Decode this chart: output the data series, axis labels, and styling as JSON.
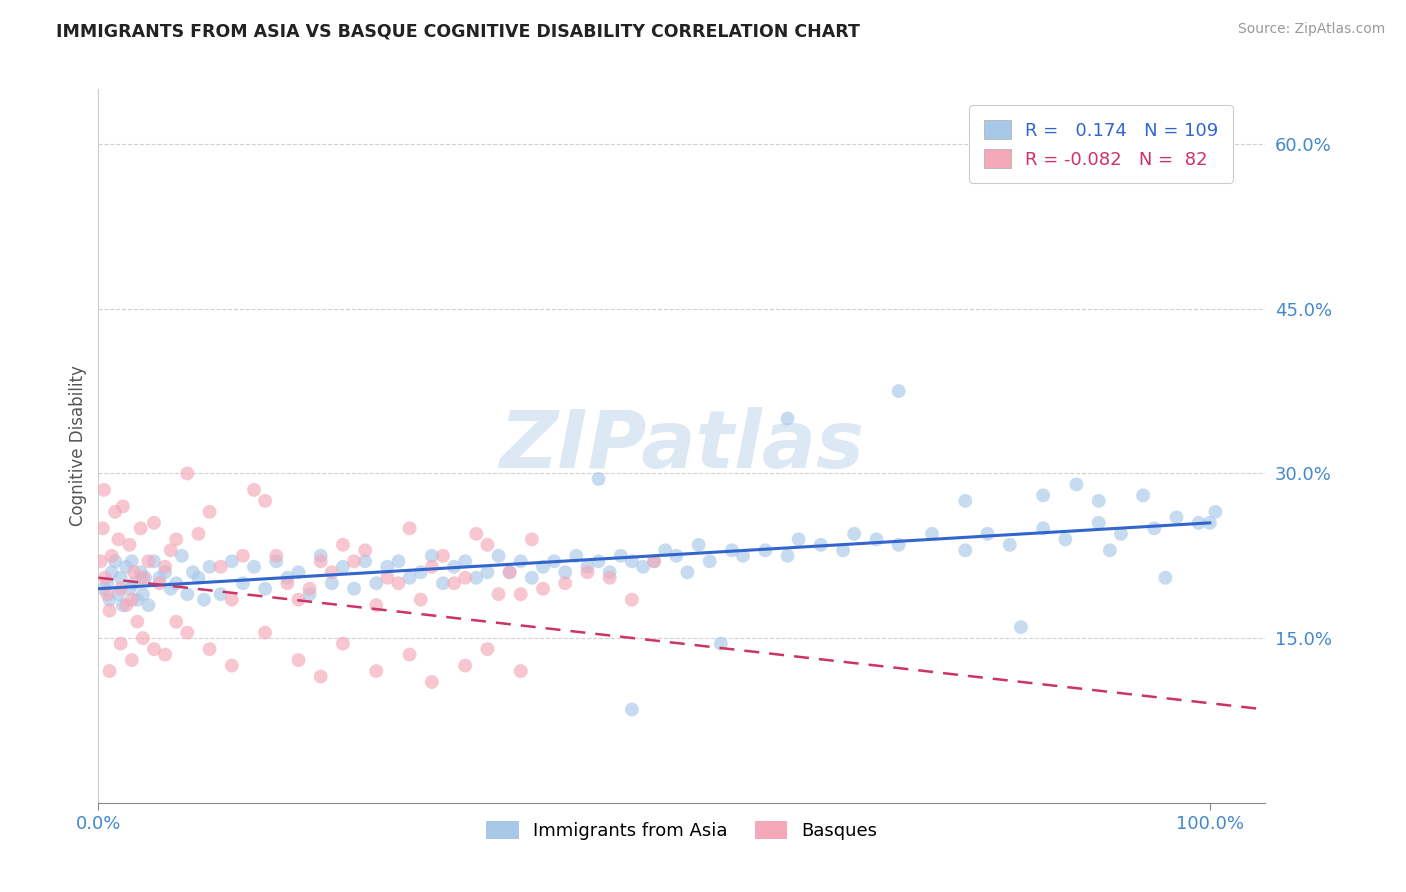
{
  "title": "IMMIGRANTS FROM ASIA VS BASQUE COGNITIVE DISABILITY CORRELATION CHART",
  "source": "Source: ZipAtlas.com",
  "ylabel_label": "Cognitive Disability",
  "legend_labels": [
    "Immigrants from Asia",
    "Basques"
  ],
  "legend_R1": "0.174",
  "legend_N1": "109",
  "legend_R2": "-0.082",
  "legend_N2": "82",
  "blue_color": "#a8c8e8",
  "pink_color": "#f4a8b8",
  "blue_line_color": "#3366cc",
  "pink_line_color": "#cc3366",
  "watermark": "ZIPatlas",
  "watermark_color": "#dde8f5",
  "axis_label_color": "#4488cc",
  "title_color": "#222222",
  "grid_color": "#cccccc",
  "background_color": "#ffffff",
  "blue_scatter_x": [
    0.5,
    0.8,
    1.0,
    1.2,
    1.5,
    1.8,
    2.0,
    2.2,
    2.5,
    2.8,
    3.0,
    3.2,
    3.5,
    3.8,
    4.0,
    4.2,
    4.5,
    5.0,
    5.5,
    6.0,
    6.5,
    7.0,
    7.5,
    8.0,
    8.5,
    9.0,
    9.5,
    10.0,
    11.0,
    12.0,
    13.0,
    14.0,
    15.0,
    16.0,
    17.0,
    18.0,
    19.0,
    20.0,
    21.0,
    22.0,
    23.0,
    24.0,
    25.0,
    26.0,
    27.0,
    28.0,
    29.0,
    30.0,
    31.0,
    32.0,
    33.0,
    34.0,
    35.0,
    36.0,
    37.0,
    38.0,
    39.0,
    40.0,
    41.0,
    42.0,
    43.0,
    44.0,
    45.0,
    46.0,
    47.0,
    48.0,
    49.0,
    50.0,
    51.0,
    52.0,
    53.0,
    54.0,
    55.0,
    57.0,
    58.0,
    60.0,
    62.0,
    63.0,
    65.0,
    67.0,
    68.0,
    70.0,
    72.0,
    75.0,
    78.0,
    80.0,
    82.0,
    85.0,
    87.0,
    90.0,
    92.0,
    95.0,
    97.0,
    100.0,
    56.0,
    45.0,
    62.0,
    78.0,
    83.0,
    88.0,
    91.0,
    94.0,
    96.0,
    99.0,
    100.5,
    48.0,
    72.0,
    85.0,
    90.0
  ],
  "blue_scatter_y": [
    19.5,
    20.0,
    18.5,
    21.0,
    22.0,
    19.0,
    20.5,
    18.0,
    21.5,
    19.5,
    22.0,
    20.0,
    18.5,
    21.0,
    19.0,
    20.5,
    18.0,
    22.0,
    20.5,
    21.0,
    19.5,
    20.0,
    22.5,
    19.0,
    21.0,
    20.5,
    18.5,
    21.5,
    19.0,
    22.0,
    20.0,
    21.5,
    19.5,
    22.0,
    20.5,
    21.0,
    19.0,
    22.5,
    20.0,
    21.5,
    19.5,
    22.0,
    20.0,
    21.5,
    22.0,
    20.5,
    21.0,
    22.5,
    20.0,
    21.5,
    22.0,
    20.5,
    21.0,
    22.5,
    21.0,
    22.0,
    20.5,
    21.5,
    22.0,
    21.0,
    22.5,
    21.5,
    22.0,
    21.0,
    22.5,
    22.0,
    21.5,
    22.0,
    23.0,
    22.5,
    21.0,
    23.5,
    22.0,
    23.0,
    22.5,
    23.0,
    22.5,
    24.0,
    23.5,
    23.0,
    24.5,
    24.0,
    23.5,
    24.5,
    23.0,
    24.5,
    23.5,
    25.0,
    24.0,
    25.5,
    24.5,
    25.0,
    26.0,
    25.5,
    14.5,
    29.5,
    35.0,
    27.5,
    16.0,
    29.0,
    23.0,
    28.0,
    20.5,
    25.5,
    26.5,
    8.5,
    37.5,
    28.0,
    27.5
  ],
  "pink_scatter_x": [
    0.2,
    0.4,
    0.5,
    0.6,
    0.8,
    1.0,
    1.2,
    1.5,
    1.8,
    2.0,
    2.2,
    2.5,
    2.8,
    3.0,
    3.2,
    3.5,
    3.8,
    4.0,
    4.5,
    5.0,
    5.5,
    6.0,
    6.5,
    7.0,
    8.0,
    9.0,
    10.0,
    11.0,
    12.0,
    13.0,
    14.0,
    15.0,
    16.0,
    17.0,
    18.0,
    19.0,
    20.0,
    21.0,
    22.0,
    23.0,
    24.0,
    25.0,
    26.0,
    27.0,
    28.0,
    29.0,
    30.0,
    31.0,
    32.0,
    33.0,
    34.0,
    35.0,
    36.0,
    37.0,
    38.0,
    39.0,
    40.0,
    42.0,
    44.0,
    46.0,
    48.0,
    50.0,
    1.0,
    2.0,
    3.0,
    4.0,
    5.0,
    6.0,
    7.0,
    8.0,
    10.0,
    12.0,
    15.0,
    18.0,
    20.0,
    22.0,
    25.0,
    28.0,
    30.0,
    33.0,
    35.0,
    38.0
  ],
  "pink_scatter_y": [
    22.0,
    25.0,
    28.5,
    20.5,
    19.0,
    17.5,
    22.5,
    26.5,
    24.0,
    19.5,
    27.0,
    18.0,
    23.5,
    18.5,
    21.0,
    16.5,
    25.0,
    20.5,
    22.0,
    25.5,
    20.0,
    21.5,
    23.0,
    24.0,
    30.0,
    24.5,
    26.5,
    21.5,
    18.5,
    22.5,
    28.5,
    27.5,
    22.5,
    20.0,
    18.5,
    19.5,
    22.0,
    21.0,
    23.5,
    22.0,
    23.0,
    18.0,
    20.5,
    20.0,
    25.0,
    18.5,
    21.5,
    22.5,
    20.0,
    20.5,
    24.5,
    23.5,
    19.0,
    21.0,
    19.0,
    24.0,
    19.5,
    20.0,
    21.0,
    20.5,
    18.5,
    22.0,
    12.0,
    14.5,
    13.0,
    15.0,
    14.0,
    13.5,
    16.5,
    15.5,
    14.0,
    12.5,
    15.5,
    13.0,
    11.5,
    14.5,
    12.0,
    13.5,
    11.0,
    12.5,
    14.0,
    12.0
  ],
  "xlim": [
    0,
    105
  ],
  "ylim": [
    0,
    65
  ],
  "ytick_vals": [
    15,
    30,
    45,
    60
  ],
  "xtick_vals": [
    0,
    100
  ],
  "blue_trend_x": [
    0,
    100
  ],
  "blue_trend_y": [
    19.5,
    25.5
  ],
  "pink_trend_x": [
    0,
    105
  ],
  "pink_trend_y": [
    20.5,
    8.5
  ]
}
